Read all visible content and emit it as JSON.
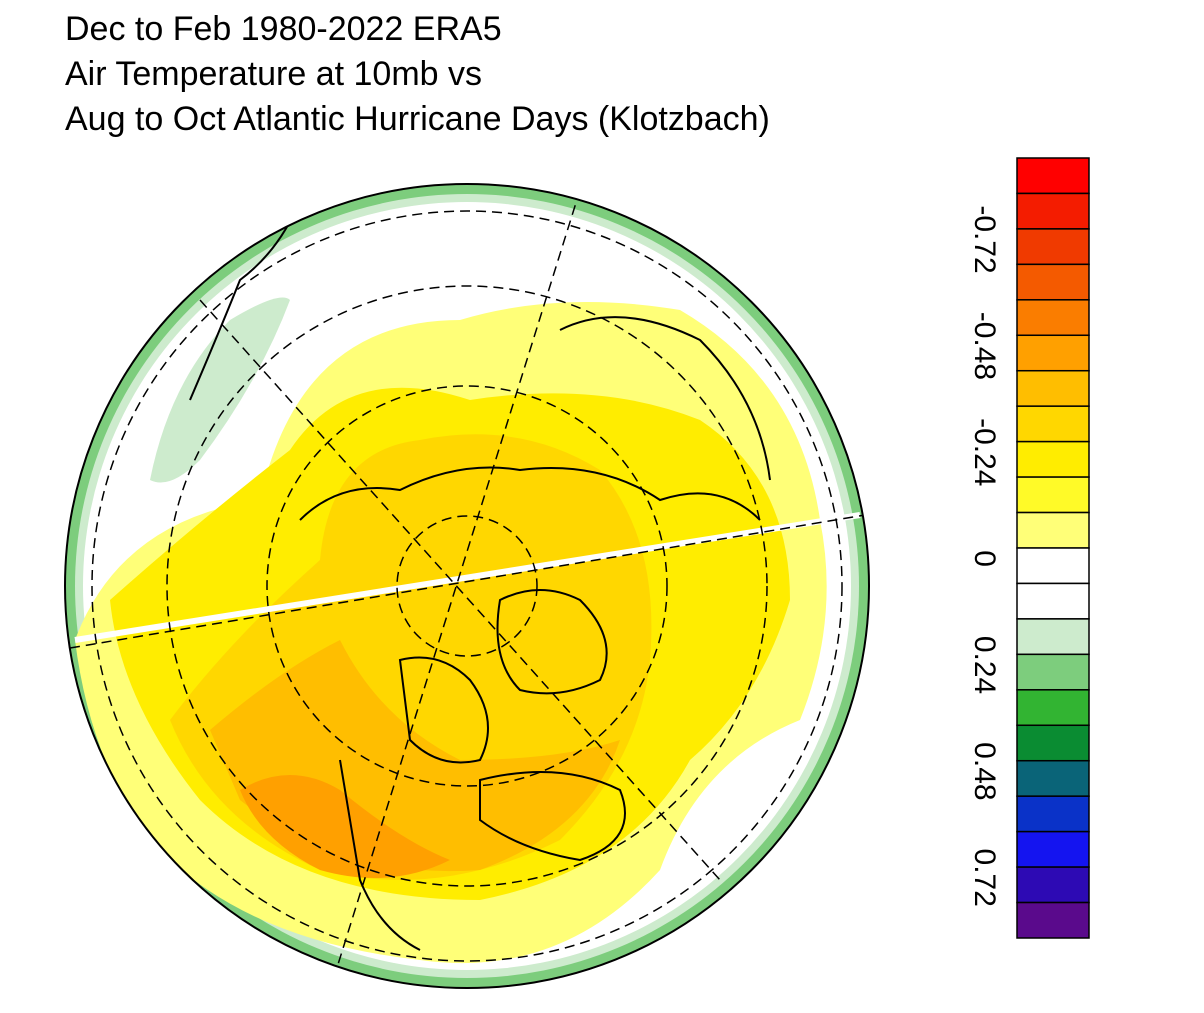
{
  "header": {
    "title_lines": [
      "Dec to Feb 1980-2022 ERA5",
      "Air Temperature at 10mb vs",
      "Aug to Oct Atlantic Hurricane Days (Klotzbach)"
    ]
  },
  "colorbar": {
    "colors": [
      "#ff0000",
      "#f41c00",
      "#f03a00",
      "#f45a00",
      "#fa7d00",
      "#ffa000",
      "#ffbe00",
      "#ffd700",
      "#ffed00",
      "#fffa28",
      "#ffff78",
      "#ffffff",
      "#ffffff",
      "#cdebcd",
      "#7dcd7d",
      "#32b432",
      "#0a8c32",
      "#0a6478",
      "#0a32c8",
      "#1414f0",
      "#2d0ab4",
      "#5a0a8c"
    ],
    "labels": [
      "-0.72",
      "-0.48",
      "-0.24",
      "0",
      "0.24",
      "0.48",
      "0.72"
    ]
  }
}
